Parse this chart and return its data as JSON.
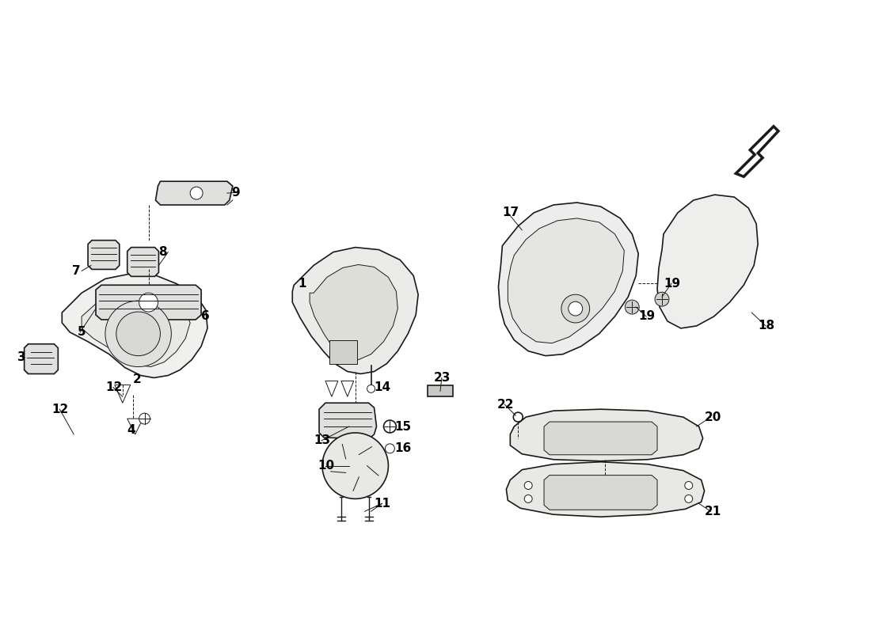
{
  "background_color": "#ffffff",
  "line_color": "#1a1a1a",
  "label_color": "#000000",
  "figsize": [
    11.0,
    8.0
  ],
  "dpi": 100,
  "lw_main": 1.2,
  "lw_thin": 0.7,
  "fs_label": 11
}
